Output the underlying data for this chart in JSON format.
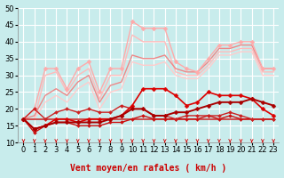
{
  "xlabel": "Vent moyen/en rafales ( km/h )",
  "background_color": "#c8ecec",
  "grid_color": "#ffffff",
  "xlim": [
    -0.5,
    23.5
  ],
  "ylim": [
    10,
    50
  ],
  "yticks": [
    10,
    15,
    20,
    25,
    30,
    35,
    40,
    45,
    50
  ],
  "xticks": [
    0,
    1,
    2,
    3,
    4,
    5,
    6,
    7,
    8,
    9,
    10,
    11,
    12,
    13,
    14,
    15,
    16,
    17,
    18,
    19,
    20,
    21,
    22,
    23
  ],
  "series": [
    {
      "x": [
        0,
        1,
        2,
        3,
        4,
        5,
        6,
        7,
        8,
        9,
        10,
        11,
        12,
        13,
        14,
        15,
        16,
        17,
        18,
        19,
        20,
        21,
        22,
        23
      ],
      "y": [
        17,
        20,
        32,
        32,
        26,
        32,
        34,
        25,
        32,
        32,
        46,
        44,
        44,
        44,
        34,
        32,
        31,
        35,
        39,
        39,
        40,
        40,
        32,
        32
      ],
      "color": "#ffaaaa",
      "lw": 1.0,
      "marker": "D",
      "ms": 2.5,
      "zorder": 3
    },
    {
      "x": [
        0,
        1,
        2,
        3,
        4,
        5,
        6,
        7,
        8,
        9,
        10,
        11,
        12,
        13,
        14,
        15,
        16,
        17,
        18,
        19,
        20,
        21,
        22,
        23
      ],
      "y": [
        17,
        17,
        30,
        31,
        25,
        30,
        32,
        23,
        30,
        30,
        42,
        40,
        40,
        40,
        31,
        30,
        30,
        33,
        37,
        37,
        38,
        38,
        31,
        31
      ],
      "color": "#ffbbbb",
      "lw": 1.0,
      "marker": null,
      "ms": 0,
      "zorder": 2
    },
    {
      "x": [
        0,
        1,
        2,
        3,
        4,
        5,
        6,
        7,
        8,
        9,
        10,
        11,
        12,
        13,
        14,
        15,
        16,
        17,
        18,
        19,
        20,
        21,
        22,
        23
      ],
      "y": [
        17,
        18,
        24,
        26,
        24,
        28,
        30,
        22,
        27,
        28,
        36,
        35,
        35,
        36,
        32,
        31,
        31,
        34,
        38,
        38,
        39,
        39,
        32,
        32
      ],
      "color": "#ee8888",
      "lw": 1.0,
      "marker": null,
      "ms": 0,
      "zorder": 2
    },
    {
      "x": [
        0,
        1,
        2,
        3,
        4,
        5,
        6,
        7,
        8,
        9,
        10,
        11,
        12,
        13,
        14,
        15,
        16,
        17,
        18,
        19,
        20,
        21,
        22,
        23
      ],
      "y": [
        17,
        17,
        22,
        24,
        22,
        26,
        28,
        20,
        25,
        26,
        34,
        33,
        33,
        34,
        30,
        29,
        29,
        32,
        36,
        36,
        37,
        37,
        30,
        30
      ],
      "color": "#ffcccc",
      "lw": 1.0,
      "marker": null,
      "ms": 0,
      "zorder": 2
    },
    {
      "x": [
        0,
        23
      ],
      "y": [
        17,
        17
      ],
      "color": "#cc3333",
      "lw": 1.2,
      "marker": null,
      "ms": 0,
      "zorder": 3
    },
    {
      "x": [
        0,
        1,
        2,
        3,
        4,
        5,
        6,
        7,
        8,
        9,
        10,
        11,
        12,
        13,
        14,
        15,
        16,
        17,
        18,
        19,
        20,
        21,
        22,
        23
      ],
      "y": [
        17,
        13,
        15,
        16,
        16,
        15,
        15,
        15,
        16,
        16,
        17,
        18,
        17,
        17,
        17,
        17,
        17,
        18,
        17,
        18,
        17,
        17,
        17,
        17
      ],
      "color": "#cc1111",
      "lw": 1.0,
      "marker": "D",
      "ms": 2.0,
      "zorder": 4
    },
    {
      "x": [
        0,
        1,
        2,
        3,
        4,
        5,
        6,
        7,
        8,
        9,
        10,
        11,
        12,
        13,
        14,
        15,
        16,
        17,
        18,
        19,
        20,
        21,
        22,
        23
      ],
      "y": [
        17,
        20,
        17,
        19,
        20,
        19,
        20,
        19,
        19,
        21,
        20,
        20,
        18,
        18,
        17,
        18,
        18,
        18,
        18,
        19,
        18,
        17,
        17,
        17
      ],
      "color": "#cc2222",
      "lw": 1.0,
      "marker": "D",
      "ms": 2.0,
      "zorder": 4
    },
    {
      "x": [
        0,
        1,
        2,
        3,
        4,
        5,
        6,
        7,
        8,
        9,
        10,
        11,
        12,
        13,
        14,
        15,
        16,
        17,
        18,
        19,
        20,
        21,
        22,
        23
      ],
      "y": [
        17,
        14,
        15,
        17,
        17,
        16,
        17,
        17,
        17,
        18,
        21,
        26,
        26,
        26,
        24,
        21,
        22,
        25,
        24,
        24,
        24,
        23,
        20,
        18
      ],
      "color": "#dd0000",
      "lw": 1.2,
      "marker": "D",
      "ms": 2.5,
      "zorder": 5
    },
    {
      "x": [
        0,
        1,
        2,
        3,
        4,
        5,
        6,
        7,
        8,
        9,
        10,
        11,
        12,
        13,
        14,
        15,
        16,
        17,
        18,
        19,
        20,
        21,
        22,
        23
      ],
      "y": [
        17,
        14,
        15,
        16,
        16,
        16,
        16,
        16,
        17,
        18,
        20,
        20,
        18,
        18,
        19,
        19,
        20,
        21,
        22,
        22,
        22,
        23,
        22,
        21
      ],
      "color": "#aa0000",
      "lw": 1.4,
      "marker": "D",
      "ms": 2.5,
      "zorder": 5
    }
  ],
  "arrow_color": "#cc0000",
  "xlabel_color": "#cc0000",
  "fontsize_xlabel": 7,
  "fontsize_ticks": 6
}
